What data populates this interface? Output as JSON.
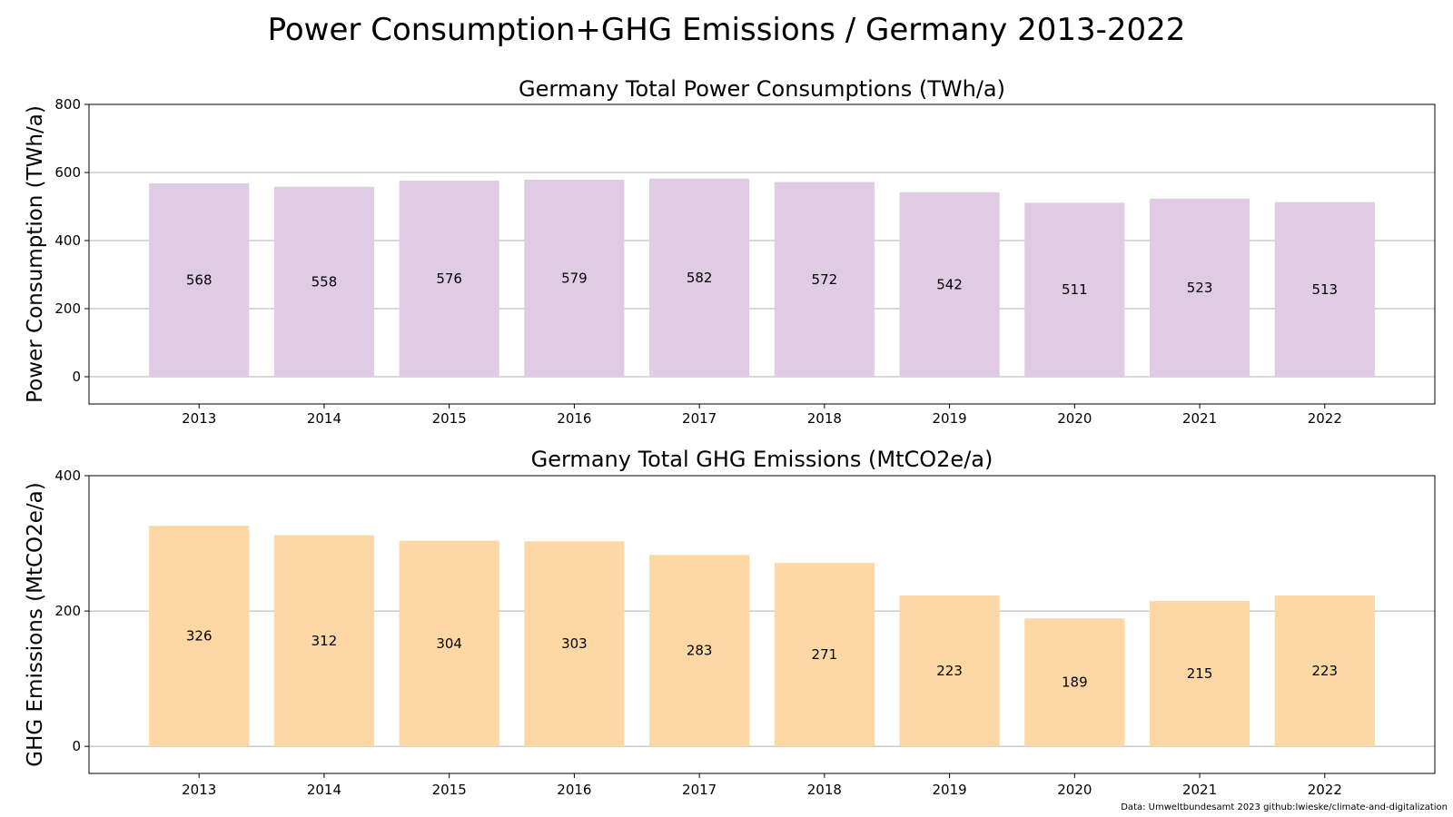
{
  "suptitle": "Power Consumption+GHG Emissions / Germany 2013-2022",
  "footer": "Data: Umweltbundesamt 2023   github:lwieske/climate-and-digitalization",
  "chart_data": [
    {
      "type": "bar",
      "title": "Germany Total Power Consumptions (TWh/a)",
      "ylabel": "Power Consumption (TWh/a)",
      "xlabel": "",
      "categories": [
        "2013",
        "2014",
        "2015",
        "2016",
        "2017",
        "2018",
        "2019",
        "2020",
        "2021",
        "2022"
      ],
      "values": [
        568,
        558,
        576,
        579,
        582,
        572,
        542,
        511,
        523,
        513
      ],
      "data_labels": [
        "568",
        "558",
        "576",
        "579",
        "582",
        "572",
        "542",
        "511",
        "523",
        "513"
      ],
      "ylim": [
        -80,
        800
      ],
      "yticks": [
        0,
        200,
        400,
        600,
        800
      ],
      "ytick_labels": [
        "0",
        "200",
        "400",
        "600",
        "800"
      ],
      "grid": true,
      "color": "#dfccE4"
    },
    {
      "type": "bar",
      "title": "Germany Total GHG Emissions (MtCO2e/a)",
      "ylabel": "GHG Emissions (MtCO2e/a)",
      "xlabel": "",
      "categories": [
        "2013",
        "2014",
        "2015",
        "2016",
        "2017",
        "2018",
        "2019",
        "2020",
        "2021",
        "2022"
      ],
      "values": [
        326,
        312,
        304,
        303,
        283,
        271,
        223,
        189,
        215,
        223
      ],
      "data_labels": [
        "326",
        "312",
        "304",
        "303",
        "283",
        "271",
        "223",
        "189",
        "215",
        "223"
      ],
      "ylim": [
        -40,
        400
      ],
      "yticks": [
        0,
        200,
        400
      ],
      "ytick_labels": [
        "0",
        "200",
        "400"
      ],
      "grid": true,
      "color": "#fdd7a4"
    }
  ]
}
